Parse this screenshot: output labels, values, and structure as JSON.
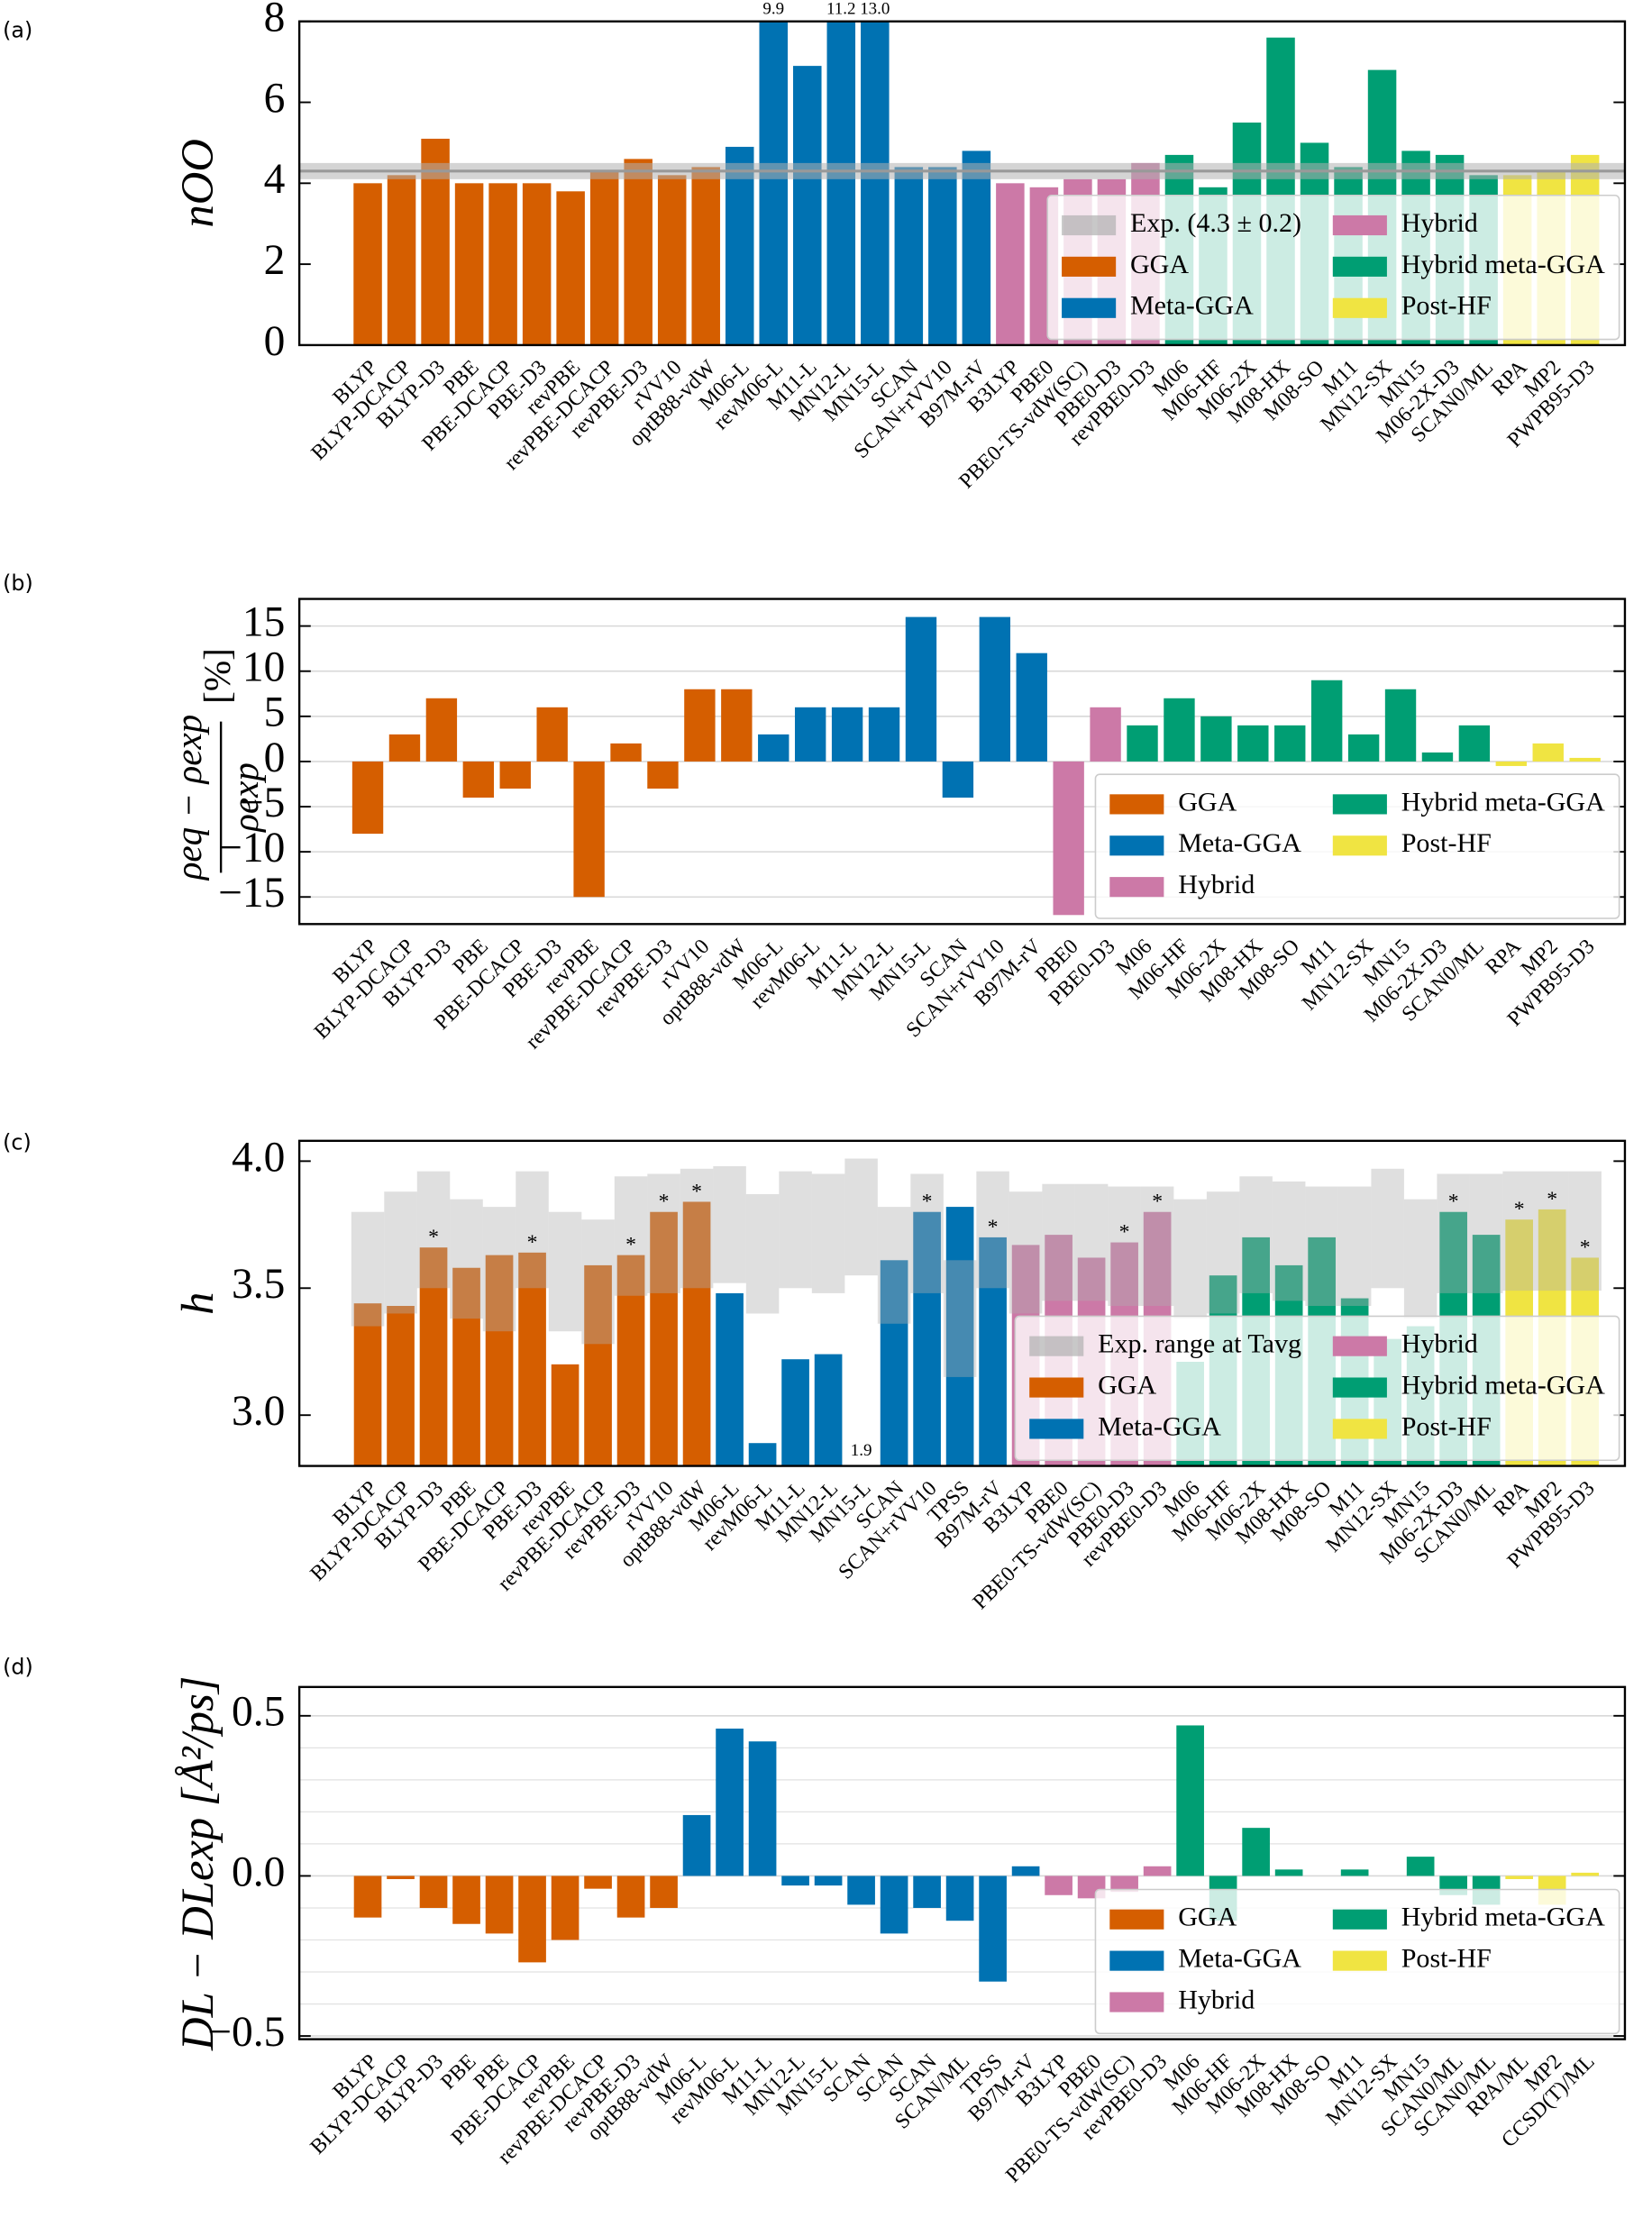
{
  "chart_data": [
    {
      "type": "bar",
      "panel_label": "(a)",
      "ylabel": "nOO",
      "ylim": [
        0,
        8
      ],
      "yticks": [
        0,
        2,
        4,
        6,
        8
      ],
      "grid": false,
      "legend": "lower right",
      "reference": {
        "name": "Exp. (4.3 ± 0.2)",
        "value": 4.3,
        "error": 0.2,
        "color": "#b0b0b0"
      },
      "series": [
        {
          "name": "GGA",
          "color": "#d55e00",
          "categories": [
            "BLYP",
            "BLYP-DCACP",
            "BLYP-D3",
            "PBE",
            "PBE-DCACP",
            "PBE-D3",
            "revPBE",
            "revPBE-DCACP",
            "revPBE-D3",
            "rVV10",
            "optB88-vdW"
          ],
          "values": [
            4.0,
            4.2,
            5.1,
            4.0,
            4.0,
            4.0,
            3.8,
            4.3,
            4.6,
            4.2,
            4.4
          ]
        },
        {
          "name": "Meta-GGA",
          "color": "#0072b2",
          "categories": [
            "M06-L",
            "revM06-L",
            "M11-L",
            "MN12-L",
            "MN15-L",
            "SCAN",
            "SCAN+rVV10",
            "B97M-rV"
          ],
          "values": [
            4.9,
            9.9,
            6.9,
            11.2,
            13.0,
            4.4,
            4.4,
            4.8
          ],
          "value_labels": [
            null,
            "9.9",
            null,
            "11.2",
            "13.0",
            null,
            null,
            null
          ]
        },
        {
          "name": "Hybrid",
          "color": "#cc79a7",
          "categories": [
            "B3LYP",
            "PBE0",
            "PBE0-TS-vdW(SC)",
            "PBE0-D3",
            "revPBE0-D3"
          ],
          "values": [
            4.0,
            3.9,
            4.1,
            4.1,
            4.5
          ]
        },
        {
          "name": "Hybrid meta-GGA",
          "color": "#009e73",
          "categories": [
            "M06",
            "M06-HF",
            "M06-2X",
            "M08-HX",
            "M08-SO",
            "M11",
            "MN12-SX",
            "MN15",
            "M06-2X-D3",
            "SCAN0/ML"
          ],
          "values": [
            4.7,
            3.9,
            5.5,
            7.6,
            5.0,
            4.4,
            6.8,
            4.8,
            4.7,
            4.2
          ]
        },
        {
          "name": "Post-HF",
          "color": "#f0e442",
          "categories": [
            "RPA",
            "MP2",
            "PWPB95-D3"
          ],
          "values": [
            4.2,
            4.3,
            4.7
          ]
        }
      ]
    },
    {
      "type": "bar",
      "panel_label": "(b)",
      "ylabel": {
        "numerator": "ρeq − ρexp",
        "denominator": "ρexp",
        "unit": "[%]"
      },
      "ylim": [
        -18,
        18
      ],
      "yticks": [
        {
          "value": -15,
          "label": "−15"
        },
        {
          "value": -10,
          "label": "−10"
        },
        {
          "value": -5,
          "label": "−5"
        },
        0,
        5,
        10,
        15
      ],
      "grid": true,
      "legend": "lower right",
      "series": [
        {
          "name": "GGA",
          "color": "#d55e00",
          "categories": [
            "BLYP",
            "BLYP-DCACP",
            "BLYP-D3",
            "PBE",
            "PBE-DCACP",
            "PBE-D3",
            "revPBE",
            "revPBE-DCACP",
            "revPBE-D3",
            "rVV10",
            "optB88-vdW"
          ],
          "values": [
            -8,
            3,
            7,
            -4,
            -3,
            6,
            -15,
            2,
            -3,
            8,
            8
          ]
        },
        {
          "name": "Meta-GGA",
          "color": "#0072b2",
          "categories": [
            "M06-L",
            "revM06-L",
            "M11-L",
            "MN12-L",
            "MN15-L",
            "SCAN",
            "SCAN+rVV10",
            "B97M-rV"
          ],
          "values": [
            3,
            6,
            6,
            6,
            16,
            -4,
            16,
            12
          ]
        },
        {
          "name": "Hybrid",
          "color": "#cc79a7",
          "categories": [
            "PBE0",
            "PBE0-D3"
          ],
          "values": [
            -17,
            6
          ]
        },
        {
          "name": "Hybrid meta-GGA",
          "color": "#009e73",
          "categories": [
            "M06",
            "M06-HF",
            "M06-2X",
            "M08-HX",
            "M08-SO",
            "M11",
            "MN12-SX",
            "MN15",
            "M06-2X-D3",
            "SCAN0/ML"
          ],
          "values": [
            4,
            7,
            5,
            4,
            4,
            9,
            3,
            8,
            1,
            4
          ]
        },
        {
          "name": "Post-HF",
          "color": "#f0e442",
          "categories": [
            "RPA",
            "MP2",
            "PWPB95-D3"
          ],
          "values": [
            -0.5,
            2,
            0.4
          ]
        }
      ]
    },
    {
      "type": "bar",
      "panel_label": "(c)",
      "ylabel": "h",
      "ylim": [
        2.8,
        4.08
      ],
      "yticks": [
        {
          "value": 3.0,
          "label": "3.0"
        },
        3.5,
        {
          "value": 4.0,
          "label": "4.0"
        }
      ],
      "grid": false,
      "legend": "lower right",
      "flag_label": "*",
      "reference": {
        "name": "Exp. range at Tavg",
        "color": "#b0b0b0",
        "low": [
          3.35,
          3.4,
          3.5,
          3.38,
          3.33,
          3.5,
          3.33,
          3.28,
          3.47,
          3.48,
          3.5,
          3.52,
          3.4,
          3.5,
          3.48,
          3.55,
          3.36,
          3.48,
          3.15,
          3.5,
          3.4,
          3.45,
          3.45,
          3.43,
          3.43,
          3.38,
          3.4,
          3.48,
          3.45,
          3.43,
          3.43,
          3.5,
          3.38,
          3.48,
          3.48,
          3.49,
          3.49,
          3.49
        ],
        "high": [
          3.8,
          3.88,
          3.96,
          3.85,
          3.82,
          3.96,
          3.8,
          3.77,
          3.94,
          3.95,
          3.97,
          3.98,
          3.87,
          3.96,
          3.95,
          4.01,
          3.82,
          3.95,
          3.61,
          3.96,
          3.88,
          3.91,
          3.91,
          3.9,
          3.9,
          3.85,
          3.88,
          3.94,
          3.92,
          3.9,
          3.9,
          3.97,
          3.85,
          3.95,
          3.95,
          3.96,
          3.96,
          3.96
        ]
      },
      "series": [
        {
          "name": "GGA",
          "color": "#d55e00",
          "categories": [
            "BLYP",
            "BLYP-DCACP",
            "BLYP-D3",
            "PBE",
            "PBE-DCACP",
            "PBE-D3",
            "revPBE",
            "revPBE-DCACP",
            "revPBE-D3",
            "rVV10",
            "optB88-vdW"
          ],
          "values": [
            3.44,
            3.43,
            3.66,
            3.58,
            3.63,
            3.64,
            3.2,
            3.59,
            3.63,
            3.8,
            3.84
          ],
          "flags": [
            false,
            false,
            true,
            false,
            false,
            true,
            false,
            false,
            true,
            true,
            true
          ]
        },
        {
          "name": "Meta-GGA",
          "color": "#0072b2",
          "categories": [
            "M06-L",
            "revM06-L",
            "M11-L",
            "MN12-L",
            "MN15-L",
            "SCAN",
            "SCAN+rVV10",
            "TPSS",
            "B97M-rV"
          ],
          "values": [
            3.48,
            2.89,
            3.22,
            3.24,
            1.9,
            3.61,
            3.8,
            3.82,
            3.7
          ],
          "value_labels": [
            null,
            null,
            null,
            null,
            "1.9",
            null,
            null,
            null,
            null
          ],
          "flags": [
            false,
            false,
            false,
            false,
            false,
            false,
            true,
            false,
            true
          ]
        },
        {
          "name": "Hybrid",
          "color": "#cc79a7",
          "categories": [
            "B3LYP",
            "PBE0",
            "PBE0-TS-vdW(SC)",
            "PBE0-D3",
            "revPBE0-D3"
          ],
          "values": [
            3.67,
            3.71,
            3.62,
            3.68,
            3.8
          ],
          "flags": [
            false,
            false,
            false,
            true,
            true
          ]
        },
        {
          "name": "Hybrid meta-GGA",
          "color": "#009e73",
          "categories": [
            "M06",
            "M06-HF",
            "M06-2X",
            "M08-HX",
            "M08-SO",
            "M11",
            "MN12-SX",
            "MN15",
            "M06-2X-D3",
            "SCAN0/ML"
          ],
          "values": [
            3.21,
            3.55,
            3.7,
            3.59,
            3.7,
            3.46,
            3.3,
            3.35,
            3.8,
            3.71
          ],
          "flags": [
            false,
            false,
            false,
            false,
            false,
            false,
            false,
            false,
            true,
            false
          ]
        },
        {
          "name": "Post-HF",
          "color": "#f0e442",
          "categories": [
            "RPA",
            "MP2",
            "PWPB95-D3"
          ],
          "values": [
            3.77,
            3.81,
            3.62
          ],
          "flags": [
            true,
            true,
            true
          ]
        }
      ]
    },
    {
      "type": "bar",
      "panel_label": "(d)",
      "ylabel": "DL − DLexp [Å²/ps]",
      "ylim": [
        -0.51,
        0.59
      ],
      "yticks": [
        {
          "value": -0.5,
          "label": "−0.5"
        },
        {
          "value": 0.0,
          "label": "0.0"
        },
        {
          "value": 0.5,
          "label": "0.5"
        }
      ],
      "minor_yticks": [
        -0.4,
        -0.3,
        -0.2,
        -0.1,
        0.1,
        0.2,
        0.3,
        0.4
      ],
      "grid": true,
      "legend": "lower right",
      "series": [
        {
          "name": "GGA",
          "color": "#d55e00",
          "categories": [
            "BLYP",
            "BLYP-DCACP",
            "BLYP-D3",
            "PBE",
            "PBE",
            "PBE-DCACP",
            "revPBE",
            "revPBE-DCACP",
            "revPBE-D3",
            "optB88-vdW"
          ],
          "values": [
            -0.13,
            -0.01,
            -0.1,
            -0.15,
            -0.18,
            -0.27,
            -0.2,
            -0.04,
            -0.13,
            -0.1
          ]
        },
        {
          "name": "Meta-GGA",
          "color": "#0072b2",
          "categories": [
            "M06-L",
            "revM06-L",
            "M11-L",
            "MN12-L",
            "MN15-L",
            "SCAN",
            "SCAN",
            "SCAN",
            "SCAN/ML",
            "TPSS",
            "B97M-rV"
          ],
          "values": [
            0.19,
            0.46,
            0.42,
            -0.03,
            -0.03,
            -0.09,
            -0.18,
            -0.1,
            -0.14,
            -0.33,
            0.03
          ]
        },
        {
          "name": "Hybrid",
          "color": "#cc79a7",
          "categories": [
            "B3LYP",
            "PBE0",
            "PBE0-TS-vdW(SC)",
            "revPBE0-D3"
          ],
          "values": [
            -0.06,
            -0.07,
            -0.05,
            0.03
          ]
        },
        {
          "name": "Hybrid meta-GGA",
          "color": "#009e73",
          "categories": [
            "M06",
            "M06-HF",
            "M06-2X",
            "M08-HX",
            "M08-SO",
            "M11",
            "MN12-SX",
            "MN15",
            "SCAN0/ML",
            "SCAN0/ML"
          ],
          "values": [
            0.47,
            -0.14,
            0.15,
            0.02,
            0.0,
            0.02,
            0.0,
            0.06,
            -0.06,
            -0.09
          ]
        },
        {
          "name": "Post-HF",
          "color": "#f0e442",
          "categories": [
            "RPA/ML",
            "MP2",
            "CCSD(T)/ML"
          ],
          "values": [
            -0.01,
            -0.09,
            0.01
          ]
        }
      ]
    }
  ]
}
